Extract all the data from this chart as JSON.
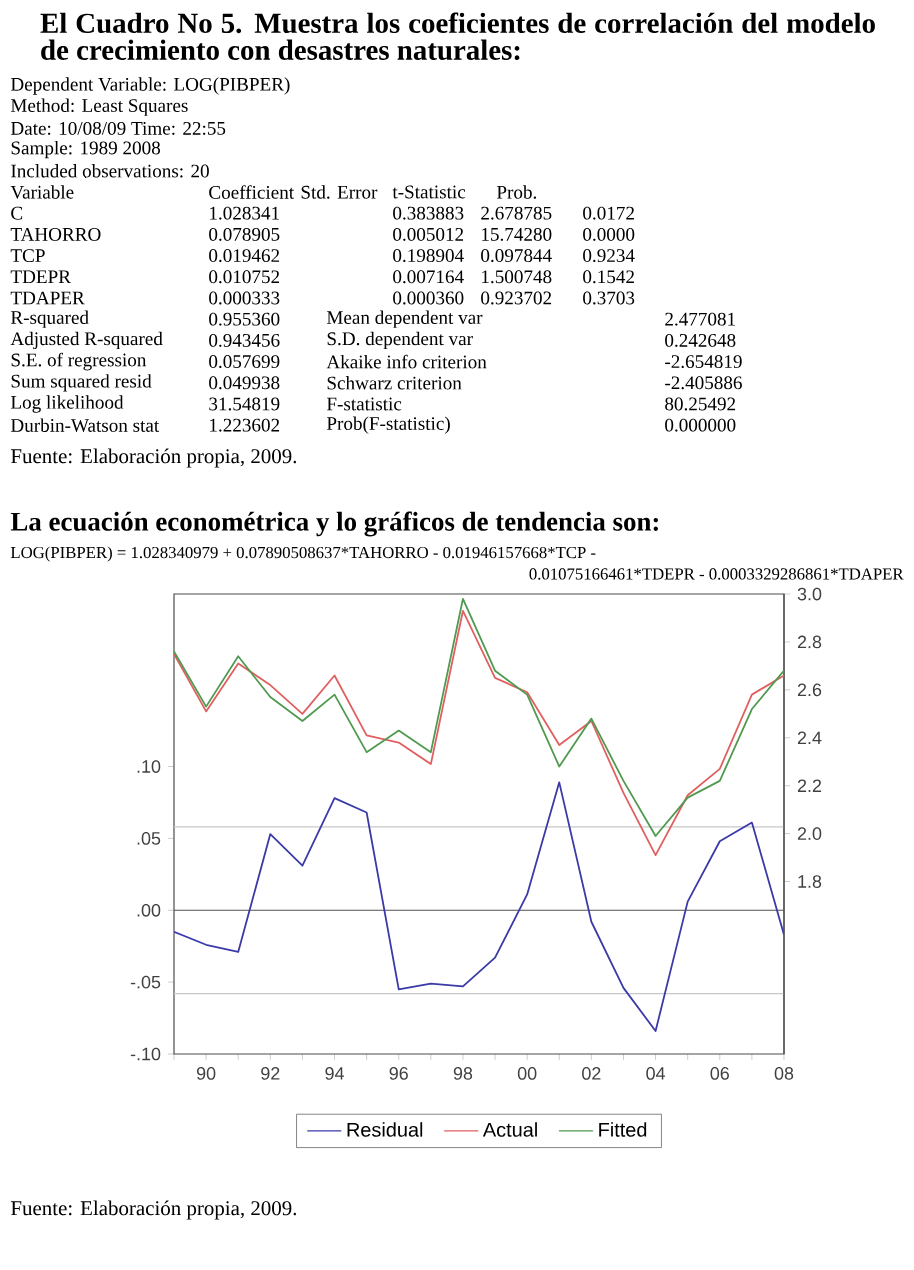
{
  "chart_data": {
    "type": "line",
    "title": "El Cuadro No 5. Muestra los coeficientes de correlación del modelo de crecimiento con desastres naturales:",
    "annotations": [
      "Dependent Variable: LOG(PIBPER)",
      "Method: Least Squares",
      "Date: 10/08/09   Time: 22:55",
      "Sample: 1989 2008",
      "Included observations: 20",
      "Variable",
      "Coefficient",
      "Std. Error",
      "t-Statistic",
      "Prob.",
      "C",
      "1.028341",
      "0.383883",
      "2.678785",
      "0.0172",
      "TAHORRO",
      "0.078905",
      "0.005012",
      "15.74280",
      "0.0000",
      "TCP",
      "0.019462",
      "0.198904",
      "0.097844",
      "0.9234",
      "TDEPR",
      "0.010752",
      "0.007164",
      "1.500748",
      "0.1542",
      "TDAPER",
      "0.000333",
      "0.000360",
      "0.923702",
      "0.3703",
      "R-squared",
      "0.955360",
      "Mean dependent var",
      "2.477081",
      "Adjusted R-squared",
      "0.943456",
      "S.D. dependent var",
      "0.242648",
      "S.E. of regression",
      "0.057699",
      "Akaike info criterion",
      "-2.654819",
      "Sum squared resid",
      "0.049938",
      "Schwarz criterion",
      "-2.405886",
      "Log likelihood",
      "31.54819",
      "F-statistic",
      "80.25492",
      "Durbin-Watson stat",
      "1.223602",
      "Prob(F-statistic)",
      "0.000000",
      "Fuente: Elaboración propia, 2009.",
      "La ecuación econométrica y lo gráficos de tendencia son:",
      "LOG(PIBPER) = 1.028340979 + 0.07890508637*TAHORRO - 0.01946157668*TCP -",
      "0.01075166461*TDEPR - 0.0003329286861*TDAPER",
      "Fuente: Elaboración propia, 2009."
    ],
    "x": [
      1989,
      1990,
      1991,
      1992,
      1993,
      1994,
      1995,
      1996,
      1997,
      1998,
      1999,
      2000,
      2001,
      2002,
      2003,
      2004,
      2005,
      2006,
      2007,
      2008
    ],
    "series": [
      {
        "name": "Residual",
        "color": "#3a3aa8",
        "values": [
          -0.015,
          -0.024,
          -0.029,
          0.053,
          0.031,
          0.078,
          0.068,
          -0.055,
          -0.051,
          -0.053,
          -0.033,
          0.011,
          0.089,
          -0.008,
          -0.054,
          -0.084,
          0.006,
          0.048,
          0.061,
          -0.017
        ]
      },
      {
        "name": "Actual",
        "color": "#e06060",
        "axis": "y2",
        "values": [
          2.75,
          2.51,
          2.71,
          2.62,
          2.5,
          2.66,
          2.41,
          2.38,
          2.29,
          2.93,
          2.65,
          2.59,
          2.37,
          2.47,
          2.17,
          1.91,
          2.16,
          2.27,
          2.58,
          2.66
        ]
      },
      {
        "name": "Fitted",
        "color": "#4f9a4f",
        "axis": "y2",
        "values": [
          2.76,
          2.53,
          2.74,
          2.57,
          2.47,
          2.58,
          2.34,
          2.43,
          2.34,
          2.98,
          2.68,
          2.58,
          2.28,
          2.48,
          2.22,
          1.99,
          2.15,
          2.22,
          2.52,
          2.68
        ]
      }
    ],
    "xlim": [
      1989,
      2008
    ],
    "xticks": [
      {
        "value": 1989,
        "label": null
      },
      {
        "value": 1990,
        "label": "90"
      },
      {
        "value": 1991,
        "label": null
      },
      {
        "value": 1992,
        "label": "92"
      },
      {
        "value": 1993,
        "label": null
      },
      {
        "value": 1994,
        "label": "94"
      },
      {
        "value": 1995,
        "label": null
      },
      {
        "value": 1996,
        "label": "96"
      },
      {
        "value": 1997,
        "label": null
      },
      {
        "value": 1998,
        "label": "98"
      },
      {
        "value": 1999,
        "label": null
      },
      {
        "value": 2000,
        "label": "00"
      },
      {
        "value": 2001,
        "label": null
      },
      {
        "value": 2002,
        "label": "02"
      },
      {
        "value": 2003,
        "label": null
      },
      {
        "value": 2004,
        "label": "04"
      },
      {
        "value": 2005,
        "label": null
      },
      {
        "value": 2006,
        "label": "06"
      },
      {
        "value": 2007,
        "label": null
      },
      {
        "value": 2008,
        "label": "08"
      }
    ],
    "ylim": [
      -0.1,
      0.22
    ],
    "yticks": [
      {
        "value": -0.1,
        "label": "-.10"
      },
      {
        "value": -0.05,
        "label": "-.05"
      },
      {
        "value": 0,
        "label": ".00"
      },
      {
        "value": 0.05,
        "label": ".05"
      },
      {
        "value": 0.1,
        "label": ".10"
      }
    ],
    "y2lim": [
      1.08,
      3.0
    ],
    "y2ticks": [
      {
        "value": 1.8,
        "label": "1.8"
      },
      {
        "value": 2.0,
        "label": "2.0"
      },
      {
        "value": 2.2,
        "label": "2.2"
      },
      {
        "value": 2.4,
        "label": "2.4"
      },
      {
        "value": 2.6,
        "label": "2.6"
      },
      {
        "value": 2.8,
        "label": "2.8"
      },
      {
        "value": 3.0,
        "label": "3.0"
      }
    ],
    "ref_lines": [
      {
        "axis": "y",
        "value": 0,
        "color": "#505050"
      },
      {
        "axis": "y",
        "value": 0.058,
        "color": "#c8c8c8"
      },
      {
        "axis": "y",
        "value": -0.058,
        "color": "#c8c8c8"
      }
    ],
    "legend": "bottom"
  }
}
